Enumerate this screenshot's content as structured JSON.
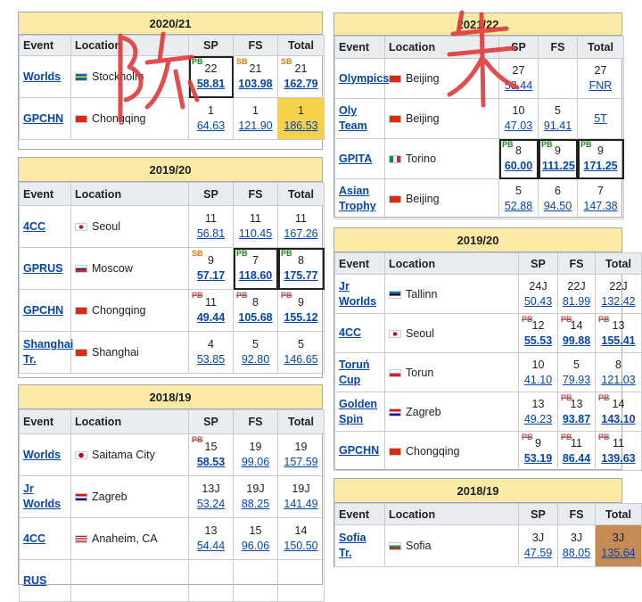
{
  "headers": {
    "event": "Event",
    "location": "Location",
    "sp": "SP",
    "fs": "FS",
    "total": "Total"
  },
  "handwriting": {
    "left": "陈",
    "right": "朱"
  },
  "left": [
    {
      "season": "2020/21",
      "rows": [
        {
          "event": "Worlds",
          "flag": "se",
          "location": "Stockholm",
          "sp": {
            "rank": "22",
            "pts": "58.81",
            "bold": true,
            "badge": "PB",
            "box": true
          },
          "fs": {
            "rank": "21",
            "pts": "103.98",
            "bold": true,
            "badge": "SB"
          },
          "total": {
            "rank": "21",
            "pts": "162.79",
            "bold": true,
            "badge": "SB"
          }
        },
        {
          "event": "GPCHN",
          "flag": "cn",
          "location": "Chongqing",
          "sp": {
            "rank": "1",
            "pts": "64.63"
          },
          "fs": {
            "rank": "1",
            "pts": "121.90"
          },
          "total": {
            "rank": "1",
            "pts": "186.53",
            "medal": "gold"
          }
        }
      ]
    },
    {
      "season": "2019/20",
      "rows": [
        {
          "event": "4CC",
          "flag": "kr",
          "location": "Seoul",
          "sp": {
            "rank": "11",
            "pts": "56.81"
          },
          "fs": {
            "rank": "11",
            "pts": "110.45"
          },
          "total": {
            "rank": "11",
            "pts": "167.26"
          }
        },
        {
          "event": "GPRUS",
          "flag": "ru",
          "location": "Moscow",
          "sp": {
            "rank": "9",
            "pts": "57.17",
            "bold": true,
            "badge": "SB"
          },
          "fs": {
            "rank": "7",
            "pts": "118.60",
            "bold": true,
            "badge": "PB",
            "box": true
          },
          "total": {
            "rank": "8",
            "pts": "175.77",
            "bold": true,
            "badge": "PB",
            "box": true
          }
        },
        {
          "event": "GPCHN",
          "flag": "cn",
          "location": "Chongqing",
          "sp": {
            "rank": "11",
            "pts": "49.44",
            "bold": true,
            "badge": "PB",
            "struck": true
          },
          "fs": {
            "rank": "8",
            "pts": "105.68",
            "bold": true,
            "badge": "PB",
            "struck": true
          },
          "total": {
            "rank": "9",
            "pts": "155.12",
            "bold": true,
            "badge": "PB",
            "struck": true
          }
        },
        {
          "event": "Shanghai Tr.",
          "flag": "cn",
          "location": "Shanghai",
          "sp": {
            "rank": "4",
            "pts": "53.85"
          },
          "fs": {
            "rank": "5",
            "pts": "92.80"
          },
          "total": {
            "rank": "5",
            "pts": "146.65"
          }
        }
      ]
    },
    {
      "season": "2018/19",
      "rows": [
        {
          "event": "Worlds",
          "flag": "jp",
          "location": "Saitama City",
          "sp": {
            "rank": "15",
            "pts": "58.53",
            "bold": true,
            "badge": "PB",
            "struck": true
          },
          "fs": {
            "rank": "19",
            "pts": "99.06"
          },
          "total": {
            "rank": "19",
            "pts": "157.59"
          }
        },
        {
          "event": "Jr Worlds",
          "flag": "hr",
          "location": "Zagreb",
          "sp": {
            "rank": "13J",
            "pts": "53.24"
          },
          "fs": {
            "rank": "19J",
            "pts": "88.25"
          },
          "total": {
            "rank": "19J",
            "pts": "141.49"
          }
        },
        {
          "event": "4CC",
          "flag": "us",
          "location": "Anaheim, CA",
          "sp": {
            "rank": "13",
            "pts": "54.44"
          },
          "fs": {
            "rank": "15",
            "pts": "96.06"
          },
          "total": {
            "rank": "14",
            "pts": "150.50"
          }
        },
        {
          "event": "RUS",
          "flag": "",
          "location": "",
          "sp": {
            "rank": "",
            "pts": ""
          },
          "fs": {
            "rank": "",
            "pts": ""
          },
          "total": {
            "rank": "",
            "pts": ""
          }
        }
      ]
    }
  ],
  "right": [
    {
      "season": "2021/22",
      "rows": [
        {
          "event": "Olympics",
          "flag": "cn",
          "location": "Beijing",
          "sp": {
            "rank": "27",
            "pts": "53.44"
          },
          "fs": {
            "rank": "",
            "pts": ""
          },
          "total": {
            "rank": "27",
            "pts": "FNR"
          }
        },
        {
          "event": "Oly Team",
          "flag": "cn",
          "location": "Beijing",
          "sp": {
            "rank": "10",
            "pts": "47.03"
          },
          "fs": {
            "rank": "5",
            "pts": "91.41"
          },
          "total": {
            "rank": "",
            "pts": "5T"
          }
        },
        {
          "event": "GPITA",
          "flag": "it",
          "location": "Torino",
          "sp": {
            "rank": "8",
            "pts": "60.00",
            "bold": true,
            "badge": "PB",
            "box": true
          },
          "fs": {
            "rank": "9",
            "pts": "111.25",
            "bold": true,
            "badge": "PB",
            "box": true
          },
          "total": {
            "rank": "9",
            "pts": "171.25",
            "bold": true,
            "badge": "PB",
            "box": true
          }
        },
        {
          "event": "Asian Trophy",
          "flag": "cn",
          "location": "Beijing",
          "sp": {
            "rank": "5",
            "pts": "52.88"
          },
          "fs": {
            "rank": "6",
            "pts": "94.50"
          },
          "total": {
            "rank": "7",
            "pts": "147.38"
          }
        }
      ]
    },
    {
      "season": "2019/20",
      "rows": [
        {
          "event": "Jr Worlds",
          "flag": "ee",
          "location": "Tallinn",
          "sp": {
            "rank": "24J",
            "pts": "50.43"
          },
          "fs": {
            "rank": "22J",
            "pts": "81.99"
          },
          "total": {
            "rank": "22J",
            "pts": "132.42"
          }
        },
        {
          "event": "4CC",
          "flag": "kr",
          "location": "Seoul",
          "sp": {
            "rank": "12",
            "pts": "55.53",
            "bold": true,
            "badge": "PB",
            "struck": true
          },
          "fs": {
            "rank": "14",
            "pts": "99.88",
            "bold": true,
            "badge": "PB",
            "struck": true
          },
          "total": {
            "rank": "13",
            "pts": "155.41",
            "bold": true,
            "badge": "PB",
            "struck": true
          }
        },
        {
          "event": "Toruń Cup",
          "flag": "pl",
          "location": "Torun",
          "sp": {
            "rank": "10",
            "pts": "41.10"
          },
          "fs": {
            "rank": "5",
            "pts": "79.93"
          },
          "total": {
            "rank": "8",
            "pts": "121.03"
          }
        },
        {
          "event": "Golden Spin",
          "flag": "hr",
          "location": "Zagreb",
          "sp": {
            "rank": "13",
            "pts": "49.23"
          },
          "fs": {
            "rank": "13",
            "pts": "93.87",
            "bold": true,
            "badge": "PB",
            "struck": true
          },
          "total": {
            "rank": "14",
            "pts": "143.10",
            "bold": true,
            "badge": "PB",
            "struck": true
          }
        },
        {
          "event": "GPCHN",
          "flag": "cn",
          "location": "Chongqing",
          "sp": {
            "rank": "9",
            "pts": "53.19",
            "bold": true,
            "badge": "PB",
            "struck": true
          },
          "fs": {
            "rank": "11",
            "pts": "86.44",
            "bold": true,
            "badge": "PB",
            "struck": true
          },
          "total": {
            "rank": "11",
            "pts": "139.63",
            "bold": true,
            "badge": "PB",
            "struck": true
          }
        }
      ]
    },
    {
      "season": "2018/19",
      "rows": [
        {
          "event": "Sofia Tr.",
          "flag": "bg",
          "location": "Sofia",
          "sp": {
            "rank": "3J",
            "pts": "47.59"
          },
          "fs": {
            "rank": "3J",
            "pts": "88.05"
          },
          "total": {
            "rank": "3J",
            "pts": "135.64",
            "medal": "bronze"
          }
        }
      ]
    }
  ]
}
